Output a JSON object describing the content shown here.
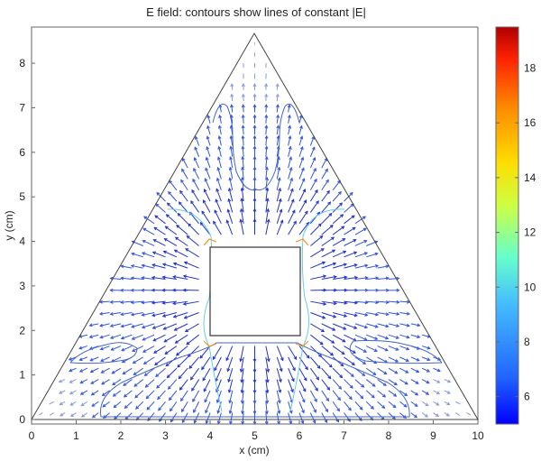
{
  "chart_data": {
    "type": "contour",
    "title": "E field: contours show lines of constant |E|",
    "xlabel": "x (cm)",
    "ylabel": "y (cm)",
    "xlim": [
      0,
      10
    ],
    "ylim": [
      -0.1,
      8.8
    ],
    "x_ticks": [
      "0",
      "1",
      "2",
      "3",
      "4",
      "5",
      "6",
      "7",
      "8",
      "9",
      "10"
    ],
    "y_ticks": [
      "0",
      "1",
      "2",
      "3",
      "4",
      "5",
      "6",
      "7",
      "8"
    ],
    "grid": false,
    "legend": "none",
    "colorbar": {
      "range": [
        5,
        19.5
      ],
      "ticks": [
        "6",
        "8",
        "10",
        "12",
        "14",
        "16",
        "18"
      ],
      "colormap": "jet"
    },
    "triangle_vertices": [
      [
        0,
        0
      ],
      [
        10,
        0
      ],
      [
        5,
        8.66
      ]
    ],
    "inner_square": {
      "x": [
        4,
        6
      ],
      "y": [
        1.9,
        3.85
      ]
    },
    "colors": {
      "triangle_outline": "#444444",
      "arrows": "#3344dd",
      "low_contour": "#4466cc",
      "mid_contour": "#66ccee",
      "high_contour": "#ff8800"
    }
  }
}
